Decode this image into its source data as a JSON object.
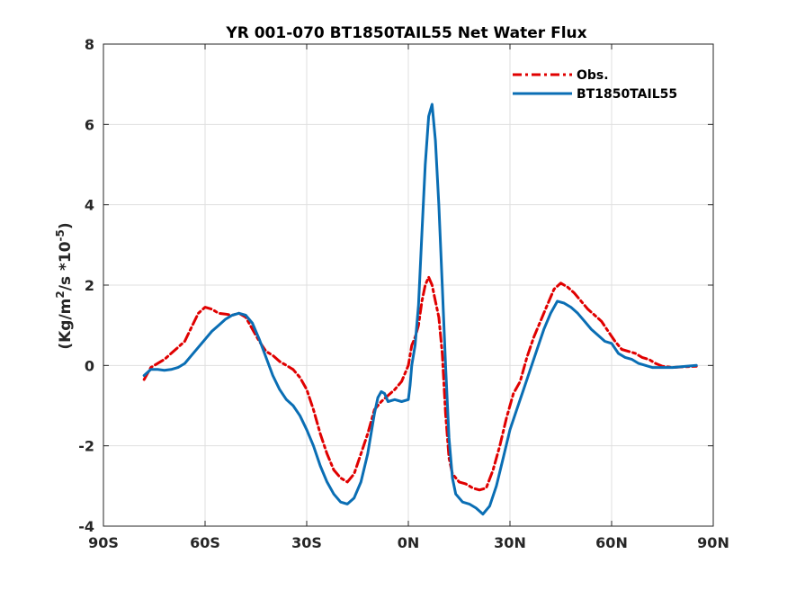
{
  "chart_data": {
    "type": "line",
    "title": "YR 001-070 BT1850TAIL55  Net Water Flux",
    "ylabel": "(Kg/m²/s *10⁻⁵)",
    "ylabel_parts": {
      "pre": "(Kg/m",
      "sup1": "2",
      "mid": "/s *10",
      "sup2": "-5",
      "post": ")"
    },
    "xlim": [
      -90,
      90
    ],
    "ylim": [
      -4,
      8
    ],
    "x_ticks": [
      -90,
      -60,
      -30,
      0,
      30,
      60,
      90
    ],
    "x_tick_labels": [
      "90S",
      "60S",
      "30S",
      "0N",
      "30N",
      "60N",
      "90N"
    ],
    "y_ticks": [
      -4,
      -2,
      0,
      2,
      4,
      6,
      8
    ],
    "y_tick_labels": [
      "-4",
      "-2",
      "0",
      "2",
      "4",
      "6",
      "8"
    ],
    "grid": true,
    "legend_position": "top-right",
    "series": [
      {
        "name": "Obs.",
        "color": "#e00000",
        "style": "dash-dot",
        "points": [
          [
            -78,
            -0.35
          ],
          [
            -76,
            -0.05
          ],
          [
            -74,
            0.05
          ],
          [
            -72,
            0.15
          ],
          [
            -70,
            0.3
          ],
          [
            -68,
            0.45
          ],
          [
            -66,
            0.6
          ],
          [
            -64,
            0.95
          ],
          [
            -62,
            1.3
          ],
          [
            -60,
            1.45
          ],
          [
            -58,
            1.4
          ],
          [
            -56,
            1.3
          ],
          [
            -54,
            1.28
          ],
          [
            -52,
            1.25
          ],
          [
            -50,
            1.3
          ],
          [
            -48,
            1.2
          ],
          [
            -46,
            0.9
          ],
          [
            -44,
            0.6
          ],
          [
            -42,
            0.35
          ],
          [
            -40,
            0.25
          ],
          [
            -38,
            0.1
          ],
          [
            -36,
            0.0
          ],
          [
            -34,
            -0.1
          ],
          [
            -32,
            -0.3
          ],
          [
            -30,
            -0.6
          ],
          [
            -28,
            -1.1
          ],
          [
            -26,
            -1.7
          ],
          [
            -24,
            -2.2
          ],
          [
            -22,
            -2.6
          ],
          [
            -20,
            -2.8
          ],
          [
            -18,
            -2.9
          ],
          [
            -16,
            -2.7
          ],
          [
            -14,
            -2.2
          ],
          [
            -12,
            -1.7
          ],
          [
            -10,
            -1.1
          ],
          [
            -8,
            -0.9
          ],
          [
            -6,
            -0.75
          ],
          [
            -4,
            -0.6
          ],
          [
            -2,
            -0.4
          ],
          [
            0,
            0.0
          ],
          [
            1,
            0.5
          ],
          [
            2,
            0.7
          ],
          [
            3,
            1.0
          ],
          [
            4,
            1.6
          ],
          [
            5,
            2.0
          ],
          [
            6,
            2.2
          ],
          [
            7,
            2.0
          ],
          [
            8,
            1.6
          ],
          [
            9,
            1.2
          ],
          [
            10,
            0.3
          ],
          [
            11,
            -1.2
          ],
          [
            12,
            -2.3
          ],
          [
            13,
            -2.7
          ],
          [
            15,
            -2.9
          ],
          [
            17,
            -2.95
          ],
          [
            19,
            -3.05
          ],
          [
            21,
            -3.1
          ],
          [
            23,
            -3.05
          ],
          [
            25,
            -2.6
          ],
          [
            27,
            -2.0
          ],
          [
            29,
            -1.3
          ],
          [
            31,
            -0.7
          ],
          [
            33,
            -0.4
          ],
          [
            35,
            0.2
          ],
          [
            37,
            0.7
          ],
          [
            39,
            1.1
          ],
          [
            41,
            1.5
          ],
          [
            43,
            1.9
          ],
          [
            45,
            2.05
          ],
          [
            47,
            1.95
          ],
          [
            49,
            1.8
          ],
          [
            51,
            1.6
          ],
          [
            53,
            1.4
          ],
          [
            55,
            1.25
          ],
          [
            57,
            1.1
          ],
          [
            59,
            0.85
          ],
          [
            61,
            0.6
          ],
          [
            63,
            0.4
          ],
          [
            65,
            0.35
          ],
          [
            67,
            0.3
          ],
          [
            69,
            0.2
          ],
          [
            71,
            0.15
          ],
          [
            73,
            0.05
          ],
          [
            75,
            -0.02
          ],
          [
            78,
            -0.05
          ],
          [
            82,
            -0.03
          ],
          [
            85,
            -0.02
          ]
        ]
      },
      {
        "name": "BT1850TAIL55",
        "color": "#0a6eb4",
        "style": "solid",
        "points": [
          [
            -78,
            -0.25
          ],
          [
            -76,
            -0.1
          ],
          [
            -74,
            -0.1
          ],
          [
            -72,
            -0.12
          ],
          [
            -70,
            -0.1
          ],
          [
            -68,
            -0.05
          ],
          [
            -66,
            0.05
          ],
          [
            -64,
            0.25
          ],
          [
            -62,
            0.45
          ],
          [
            -60,
            0.65
          ],
          [
            -58,
            0.85
          ],
          [
            -56,
            1.0
          ],
          [
            -54,
            1.15
          ],
          [
            -52,
            1.25
          ],
          [
            -50,
            1.3
          ],
          [
            -48,
            1.25
          ],
          [
            -46,
            1.05
          ],
          [
            -44,
            0.65
          ],
          [
            -42,
            0.2
          ],
          [
            -40,
            -0.25
          ],
          [
            -38,
            -0.6
          ],
          [
            -36,
            -0.85
          ],
          [
            -34,
            -1.0
          ],
          [
            -32,
            -1.25
          ],
          [
            -30,
            -1.6
          ],
          [
            -28,
            -2.0
          ],
          [
            -26,
            -2.5
          ],
          [
            -24,
            -2.9
          ],
          [
            -22,
            -3.2
          ],
          [
            -20,
            -3.4
          ],
          [
            -18,
            -3.45
          ],
          [
            -16,
            -3.3
          ],
          [
            -14,
            -2.9
          ],
          [
            -12,
            -2.2
          ],
          [
            -10,
            -1.2
          ],
          [
            -9,
            -0.8
          ],
          [
            -8,
            -0.65
          ],
          [
            -7,
            -0.7
          ],
          [
            -6,
            -0.9
          ],
          [
            -4,
            -0.85
          ],
          [
            -2,
            -0.9
          ],
          [
            0,
            -0.85
          ],
          [
            0.5,
            -0.5
          ],
          [
            1,
            0.0
          ],
          [
            2,
            0.5
          ],
          [
            3,
            1.5
          ],
          [
            4,
            3.3
          ],
          [
            5,
            5.0
          ],
          [
            6,
            6.2
          ],
          [
            7,
            6.5
          ],
          [
            8,
            5.6
          ],
          [
            9,
            4.0
          ],
          [
            10,
            2.0
          ],
          [
            11,
            0.0
          ],
          [
            12,
            -1.8
          ],
          [
            13,
            -2.8
          ],
          [
            14,
            -3.2
          ],
          [
            16,
            -3.4
          ],
          [
            18,
            -3.45
          ],
          [
            20,
            -3.55
          ],
          [
            22,
            -3.7
          ],
          [
            24,
            -3.5
          ],
          [
            26,
            -3.0
          ],
          [
            28,
            -2.3
          ],
          [
            30,
            -1.6
          ],
          [
            32,
            -1.1
          ],
          [
            34,
            -0.6
          ],
          [
            36,
            -0.1
          ],
          [
            38,
            0.4
          ],
          [
            40,
            0.9
          ],
          [
            42,
            1.3
          ],
          [
            44,
            1.6
          ],
          [
            46,
            1.55
          ],
          [
            48,
            1.45
          ],
          [
            50,
            1.3
          ],
          [
            52,
            1.1
          ],
          [
            54,
            0.9
          ],
          [
            56,
            0.75
          ],
          [
            58,
            0.6
          ],
          [
            60,
            0.55
          ],
          [
            62,
            0.3
          ],
          [
            64,
            0.2
          ],
          [
            66,
            0.15
          ],
          [
            68,
            0.05
          ],
          [
            70,
            0.0
          ],
          [
            72,
            -0.05
          ],
          [
            74,
            -0.05
          ],
          [
            78,
            -0.05
          ],
          [
            82,
            -0.02
          ],
          [
            85,
            0.0
          ]
        ]
      }
    ]
  }
}
